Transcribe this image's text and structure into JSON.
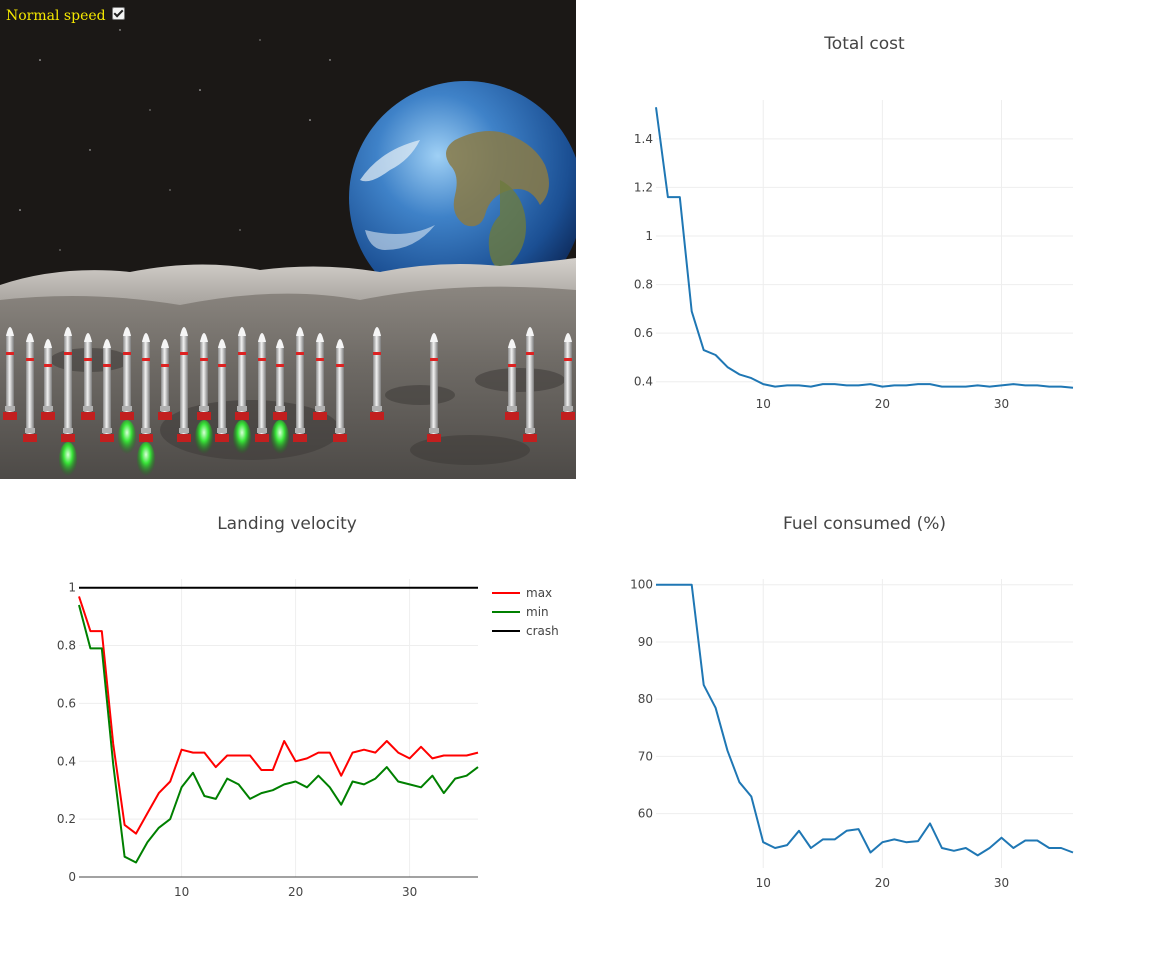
{
  "scene": {
    "speed_label": "Normal speed",
    "speed_checked": true,
    "rockets": [
      {
        "x": 10,
        "thrust": false
      },
      {
        "x": 30,
        "thrust": false
      },
      {
        "x": 48,
        "thrust": false
      },
      {
        "x": 68,
        "thrust": true
      },
      {
        "x": 88,
        "thrust": false
      },
      {
        "x": 107,
        "thrust": false
      },
      {
        "x": 127,
        "thrust": true
      },
      {
        "x": 146,
        "thrust": true
      },
      {
        "x": 165,
        "thrust": false
      },
      {
        "x": 184,
        "thrust": false
      },
      {
        "x": 204,
        "thrust": true
      },
      {
        "x": 222,
        "thrust": false
      },
      {
        "x": 242,
        "thrust": true
      },
      {
        "x": 262,
        "thrust": false
      },
      {
        "x": 280,
        "thrust": true
      },
      {
        "x": 300,
        "thrust": false
      },
      {
        "x": 320,
        "thrust": false
      },
      {
        "x": 340,
        "thrust": false
      },
      {
        "x": 377,
        "thrust": false
      },
      {
        "x": 434,
        "thrust": false
      },
      {
        "x": 512,
        "thrust": false
      },
      {
        "x": 530,
        "thrust": false
      },
      {
        "x": 568,
        "thrust": false
      }
    ]
  },
  "chart_data": [
    {
      "type": "line",
      "title": "Total cost",
      "xlabel": "",
      "ylabel": "",
      "xlim": [
        1,
        36
      ],
      "ylim": [
        0.37,
        1.56
      ],
      "xticks": [
        10,
        20,
        30
      ],
      "yticks": [
        0.4,
        0.6,
        0.8,
        1,
        1.2,
        1.4
      ],
      "ytick_labels": [
        "0.4",
        "0.6",
        "0.8",
        "1",
        "1.2",
        "1.4"
      ],
      "grid": true,
      "series": [
        {
          "color": "#1f77b4",
          "x": [
            1,
            2,
            3,
            4,
            5,
            6,
            7,
            8,
            9,
            10,
            11,
            12,
            13,
            14,
            15,
            16,
            17,
            18,
            19,
            20,
            21,
            22,
            23,
            24,
            25,
            26,
            27,
            28,
            29,
            30,
            31,
            32,
            33,
            34,
            35,
            36
          ],
          "values": [
            1.53,
            1.16,
            1.16,
            0.69,
            0.53,
            0.51,
            0.46,
            0.43,
            0.415,
            0.39,
            0.38,
            0.385,
            0.385,
            0.38,
            0.39,
            0.39,
            0.385,
            0.385,
            0.39,
            0.38,
            0.385,
            0.385,
            0.39,
            0.39,
            0.38,
            0.38,
            0.38,
            0.385,
            0.38,
            0.385,
            0.39,
            0.385,
            0.385,
            0.38,
            0.38,
            0.375
          ]
        }
      ]
    },
    {
      "type": "line",
      "title": "Landing velocity",
      "xlabel": "",
      "ylabel": "",
      "xlim": [
        1,
        36
      ],
      "ylim": [
        0,
        1.03
      ],
      "xticks": [
        10,
        20,
        30
      ],
      "yticks": [
        0,
        0.2,
        0.4,
        0.6,
        0.8,
        1
      ],
      "ytick_labels": [
        "0",
        "0.2",
        "0.4",
        "0.6",
        "0.8",
        "1"
      ],
      "grid": true,
      "legend": "top-right",
      "series": [
        {
          "name": "max",
          "color": "#ff0000",
          "x": [
            1,
            2,
            3,
            4,
            5,
            6,
            7,
            8,
            9,
            10,
            11,
            12,
            13,
            14,
            15,
            16,
            17,
            18,
            19,
            20,
            21,
            22,
            23,
            24,
            25,
            26,
            27,
            28,
            29,
            30,
            31,
            32,
            33,
            34,
            35,
            36
          ],
          "values": [
            0.97,
            0.85,
            0.85,
            0.46,
            0.18,
            0.15,
            0.22,
            0.29,
            0.33,
            0.44,
            0.43,
            0.43,
            0.38,
            0.42,
            0.42,
            0.42,
            0.37,
            0.37,
            0.47,
            0.4,
            0.41,
            0.43,
            0.43,
            0.35,
            0.43,
            0.44,
            0.43,
            0.47,
            0.43,
            0.41,
            0.45,
            0.41,
            0.42,
            0.42,
            0.42,
            0.43
          ]
        },
        {
          "name": "min",
          "color": "#008000",
          "x": [
            1,
            2,
            3,
            4,
            5,
            6,
            7,
            8,
            9,
            10,
            11,
            12,
            13,
            14,
            15,
            16,
            17,
            18,
            19,
            20,
            21,
            22,
            23,
            24,
            25,
            26,
            27,
            28,
            29,
            30,
            31,
            32,
            33,
            34,
            35,
            36
          ],
          "values": [
            0.94,
            0.79,
            0.79,
            0.39,
            0.07,
            0.05,
            0.12,
            0.17,
            0.2,
            0.31,
            0.36,
            0.28,
            0.27,
            0.34,
            0.32,
            0.27,
            0.29,
            0.3,
            0.32,
            0.33,
            0.31,
            0.35,
            0.31,
            0.25,
            0.33,
            0.32,
            0.34,
            0.38,
            0.33,
            0.32,
            0.31,
            0.35,
            0.29,
            0.34,
            0.35,
            0.38
          ]
        },
        {
          "name": "crash",
          "color": "#000000",
          "x": [
            1,
            36
          ],
          "values": [
            1,
            1
          ]
        }
      ]
    },
    {
      "type": "line",
      "title": "Fuel consumed (%)",
      "xlabel": "",
      "ylabel": "",
      "xlim": [
        1,
        36
      ],
      "ylim": [
        50.5,
        101
      ],
      "xticks": [
        10,
        20,
        30
      ],
      "yticks": [
        60,
        70,
        80,
        90,
        100
      ],
      "ytick_labels": [
        "60",
        "70",
        "80",
        "90",
        "100"
      ],
      "grid": true,
      "series": [
        {
          "color": "#1f77b4",
          "x": [
            1,
            2,
            3,
            4,
            5,
            6,
            7,
            8,
            9,
            10,
            11,
            12,
            13,
            14,
            15,
            16,
            17,
            18,
            19,
            20,
            21,
            22,
            23,
            24,
            25,
            26,
            27,
            28,
            29,
            30,
            31,
            32,
            33,
            34,
            35,
            36
          ],
          "values": [
            100,
            100,
            100,
            100,
            82.5,
            78.5,
            71,
            65.5,
            63,
            55,
            54,
            54.5,
            57,
            54,
            55.5,
            55.5,
            57,
            57.3,
            53.2,
            55,
            55.5,
            55,
            55.2,
            58.3,
            54,
            53.5,
            54,
            52.7,
            54,
            55.8,
            54,
            55.3,
            55.3,
            54,
            54,
            53.2
          ]
        }
      ]
    }
  ]
}
